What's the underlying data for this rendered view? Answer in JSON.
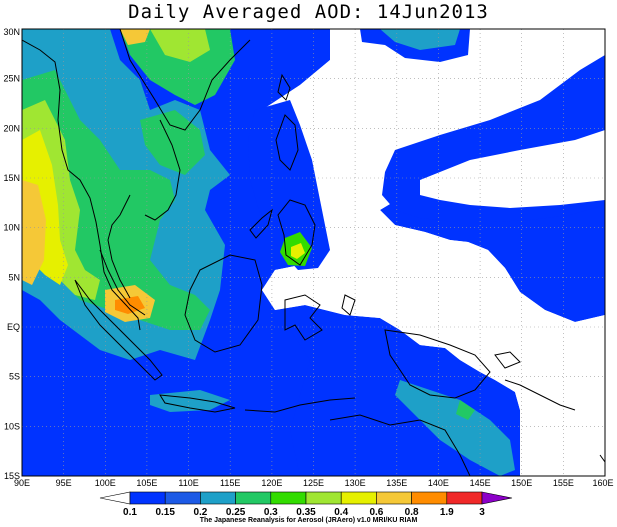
{
  "title": "Daily Averaged AOD: 14Jun2013",
  "footer": "The Japanese Reanalysis for Aerosol (JRAero) v1.0 MRI/KU RIAM",
  "map": {
    "region": {
      "lon": [
        90,
        160
      ],
      "lat": [
        -15,
        30
      ]
    },
    "x_ticks": [
      "90E",
      "95E",
      "100E",
      "105E",
      "110E",
      "115E",
      "120E",
      "125E",
      "130E",
      "135E",
      "140E",
      "145E",
      "150E",
      "155E",
      "160E"
    ],
    "y_ticks": [
      "15S",
      "10S",
      "5S",
      "EQ",
      "5N",
      "10N",
      "15N",
      "20N",
      "25N",
      "30N"
    ],
    "gridlines": "dotted"
  },
  "colorbar": {
    "levels": [
      "0.1",
      "0.15",
      "0.2",
      "0.25",
      "0.3",
      "0.35",
      "0.4",
      "0.6",
      "0.8",
      "1.9",
      "3"
    ],
    "colors": [
      "#0033ff",
      "#1c5ae6",
      "#1ea0c8",
      "#22c864",
      "#32dc00",
      "#a0e632",
      "#e6f000",
      "#f5c837",
      "#ff8c00",
      "#f02828",
      "#8c00c8"
    ],
    "background": "#ffffff"
  }
}
